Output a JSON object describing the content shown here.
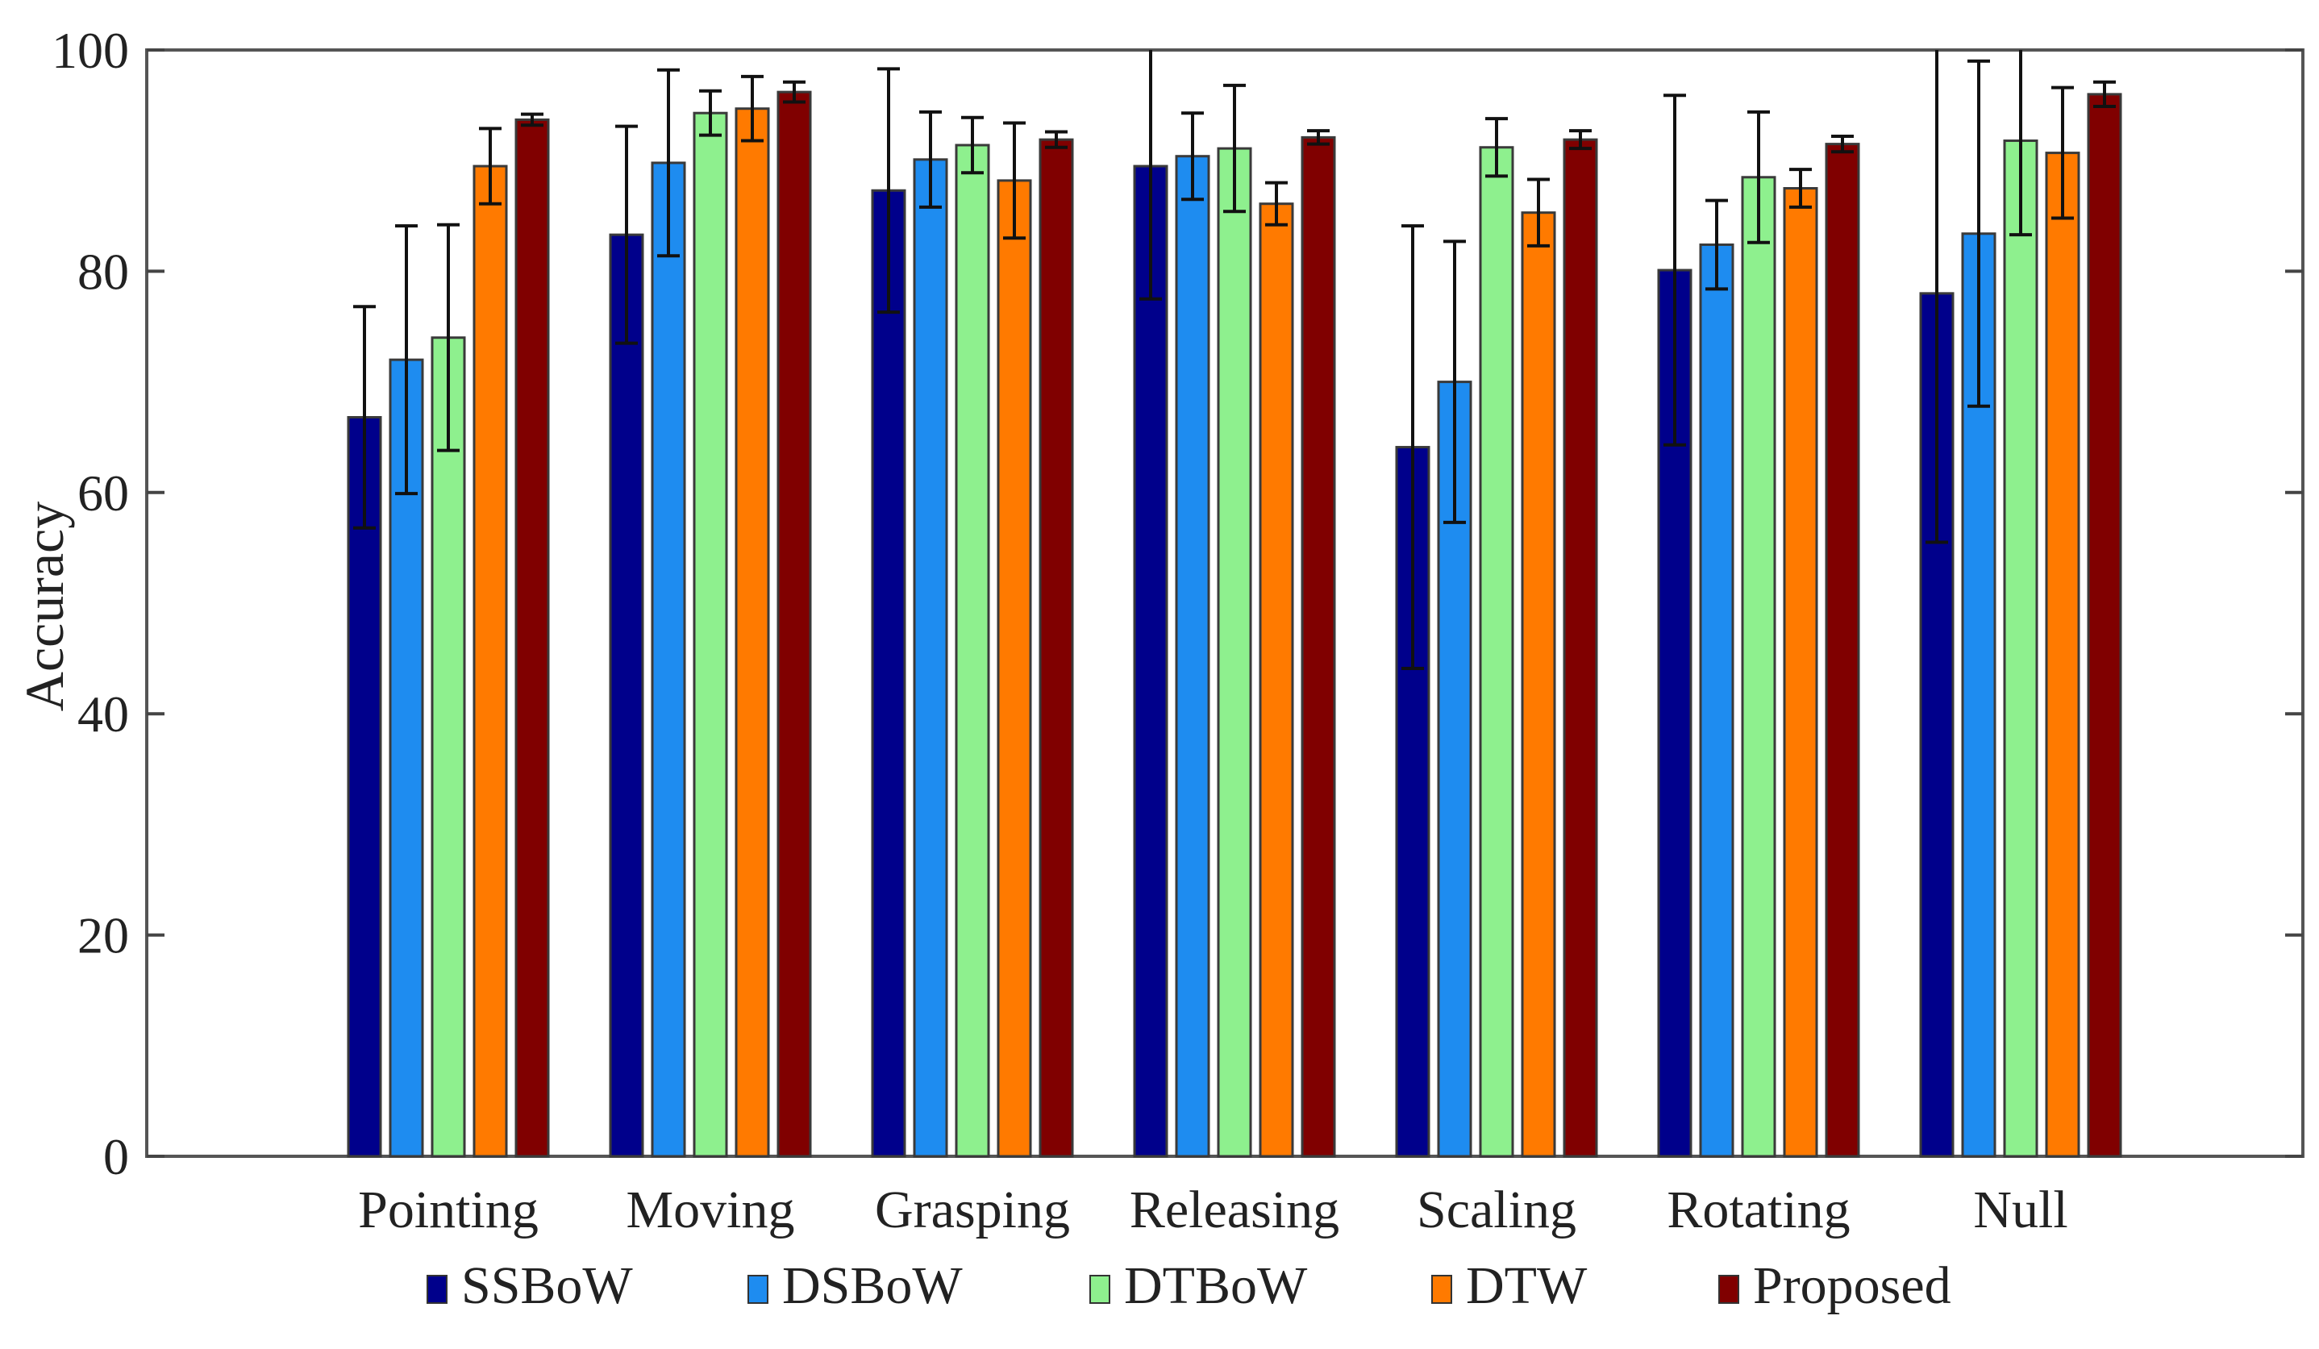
{
  "chart_data": {
    "type": "bar",
    "title": "",
    "xlabel": "",
    "ylabel": "Accuracy",
    "ylim": [
      0,
      100
    ],
    "yticks": [
      "0",
      "20",
      "40",
      "60",
      "80",
      "100"
    ],
    "grid": false,
    "legend_position": "bottom",
    "categories": [
      "Pointing",
      "Moving",
      "Grasping",
      "Releasing",
      "Scaling",
      "Rotating",
      "Null"
    ],
    "series": [
      {
        "name": "SSBoW",
        "color": "#00008b",
        "values": [
          66.8,
          83.3,
          87.3,
          89.5,
          64.1,
          80.1,
          78.0
        ],
        "errors": [
          10.0,
          9.8,
          11.0,
          12.0,
          20.0,
          15.8,
          22.5
        ]
      },
      {
        "name": "DSBoW",
        "color": "#1e8cf0",
        "values": [
          72.0,
          89.8,
          90.1,
          90.4,
          70.0,
          82.4,
          83.4
        ],
        "errors": [
          12.1,
          8.4,
          4.3,
          3.9,
          12.7,
          4.0,
          15.6
        ]
      },
      {
        "name": "DTBoW",
        "color": "#8ef08e",
        "values": [
          74.0,
          94.3,
          91.4,
          91.1,
          91.2,
          88.5,
          91.8
        ],
        "errors": [
          10.2,
          2.0,
          2.5,
          5.7,
          2.6,
          5.9,
          8.5
        ]
      },
      {
        "name": "DTW",
        "color": "#ff7a00",
        "values": [
          89.5,
          94.7,
          88.2,
          86.1,
          85.3,
          87.5,
          90.7
        ],
        "errors": [
          3.4,
          2.9,
          5.2,
          1.9,
          3.0,
          1.7,
          5.9
        ]
      },
      {
        "name": "Proposed",
        "color": "#800000",
        "values": [
          93.7,
          96.2,
          91.9,
          92.1,
          91.9,
          91.5,
          96.0
        ],
        "errors": [
          0.5,
          0.9,
          0.7,
          0.6,
          0.8,
          0.7,
          1.1
        ]
      }
    ]
  }
}
